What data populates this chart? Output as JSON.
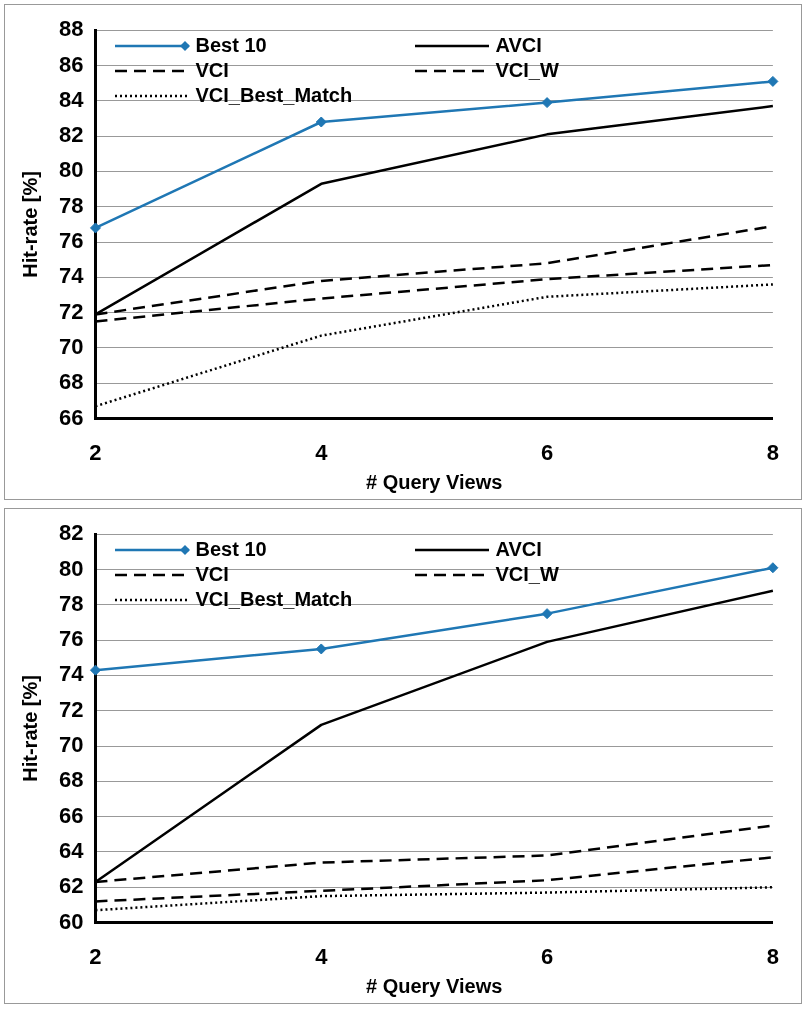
{
  "chart_data": [
    {
      "type": "line",
      "x": [
        2,
        4,
        6,
        8
      ],
      "xlim": [
        2,
        8
      ],
      "xticks": [
        2,
        4,
        6,
        8
      ],
      "ylim": [
        66,
        88
      ],
      "yticks": [
        66,
        68,
        70,
        72,
        74,
        76,
        78,
        80,
        82,
        84,
        86,
        88
      ],
      "xlabel": "# Query Views",
      "ylabel": "Hit-rate [%]",
      "grid": "y",
      "legend": "top left",
      "series": [
        {
          "name": "Best 10",
          "color": "#1f77b4",
          "values": [
            76.8,
            82.8,
            83.9,
            85.1
          ],
          "marker": "diamond",
          "line_style": "solid"
        },
        {
          "name": "AVCI",
          "color": "#000000",
          "values": [
            71.9,
            79.3,
            82.1,
            83.7
          ],
          "marker": "none",
          "line_style": "solid"
        },
        {
          "name": "VCI",
          "color": "#000000",
          "values": [
            71.9,
            73.8,
            74.8,
            76.9
          ],
          "marker": "none",
          "line_style": "dashed"
        },
        {
          "name": "VCI_W",
          "color": "#000000",
          "values": [
            71.5,
            72.8,
            73.9,
            74.7
          ],
          "marker": "none",
          "line_style": "dashed"
        },
        {
          "name": "VCI_Best_Match",
          "color": "#000000",
          "values": [
            66.7,
            70.7,
            72.9,
            73.6
          ],
          "marker": "none",
          "line_style": "dotted"
        }
      ]
    },
    {
      "type": "line",
      "x": [
        2,
        4,
        6,
        8
      ],
      "xlim": [
        2,
        8
      ],
      "xticks": [
        2,
        4,
        6,
        8
      ],
      "ylim": [
        60,
        82
      ],
      "yticks": [
        60,
        62,
        64,
        66,
        68,
        70,
        72,
        74,
        76,
        78,
        80,
        82
      ],
      "xlabel": "# Query Views",
      "ylabel": "Hit-rate [%]",
      "grid": "y",
      "legend": "top left",
      "series": [
        {
          "name": "Best 10",
          "color": "#1f77b4",
          "values": [
            74.3,
            75.5,
            77.5,
            80.1
          ],
          "marker": "diamond",
          "line_style": "solid"
        },
        {
          "name": "AVCI",
          "color": "#000000",
          "values": [
            62.3,
            71.2,
            75.9,
            78.8
          ],
          "marker": "none",
          "line_style": "solid"
        },
        {
          "name": "VCI",
          "color": "#000000",
          "values": [
            62.3,
            63.4,
            63.8,
            65.5
          ],
          "marker": "none",
          "line_style": "dashed"
        },
        {
          "name": "VCI_W",
          "color": "#000000",
          "values": [
            61.2,
            61.8,
            62.4,
            63.7
          ],
          "marker": "none",
          "line_style": "dashed"
        },
        {
          "name": "VCI_Best_Match",
          "color": "#000000",
          "values": [
            60.7,
            61.5,
            61.7,
            62.0
          ],
          "marker": "none",
          "line_style": "dotted"
        }
      ]
    }
  ]
}
